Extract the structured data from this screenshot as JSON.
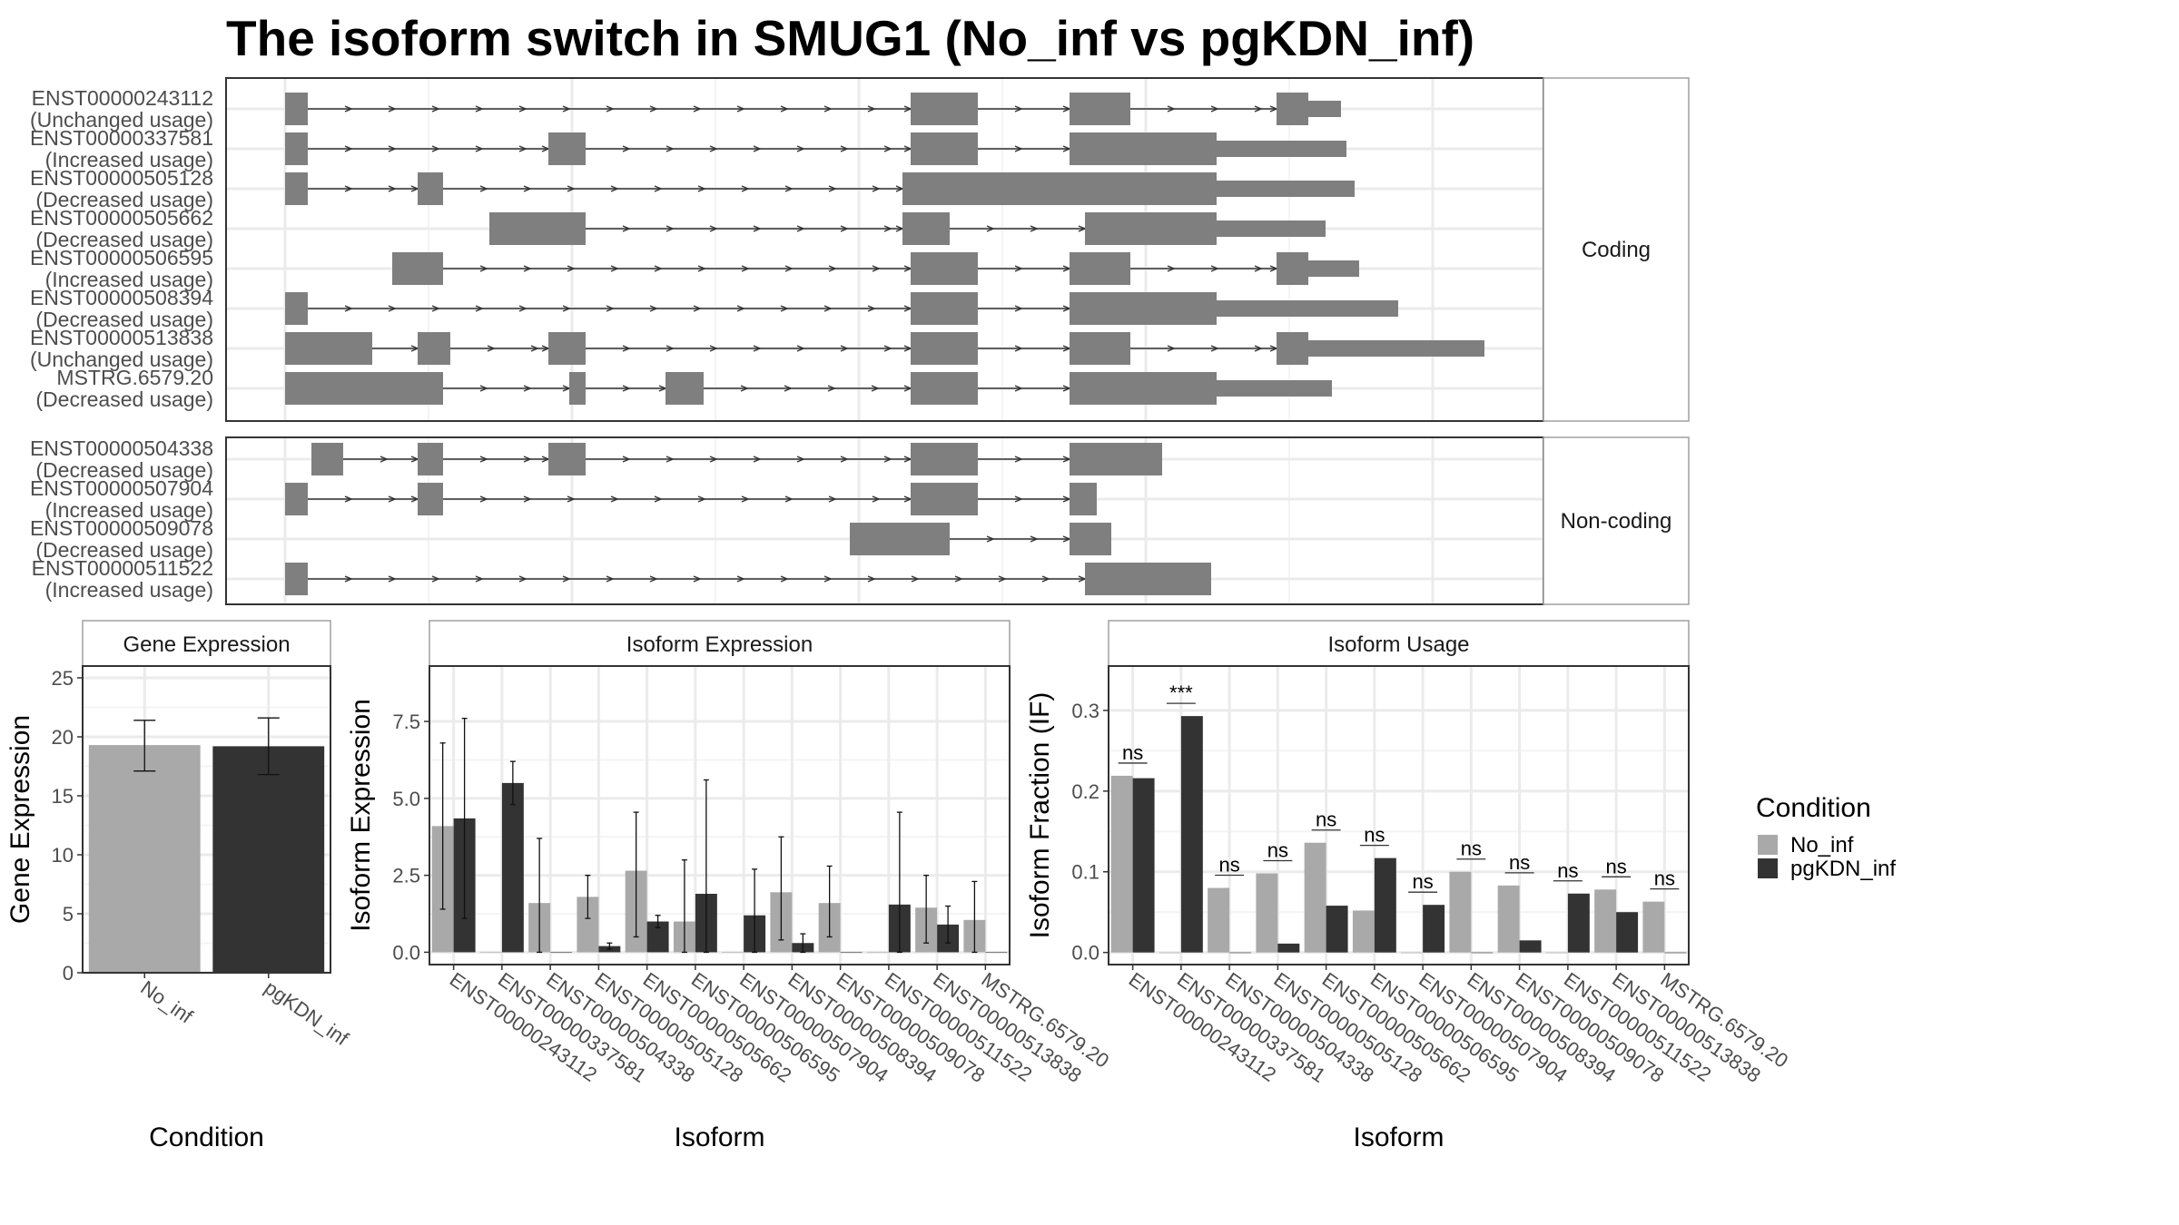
{
  "title": "The isoform switch in SMUG1 (No_inf vs pgKDN_inf)",
  "legend": {
    "title": "Condition",
    "items": [
      {
        "label": "No_inf",
        "color": "#a9a9a9"
      },
      {
        "label": "pgKDN_inf",
        "color": "#333333"
      }
    ]
  },
  "structure": {
    "exon_color": "#7f7f7f",
    "coding_panel": {
      "strip_label": "Coding",
      "rows": [
        {
          "id": "ENST00000243112",
          "usage": "(Unchanged usage)"
        },
        {
          "id": "ENST00000337581",
          "usage": "(Increased usage)"
        },
        {
          "id": "ENST00000505128",
          "usage": "(Decreased usage)"
        },
        {
          "id": "ENST00000505662",
          "usage": "(Decreased usage)"
        },
        {
          "id": "ENST00000506595",
          "usage": "(Increased usage)"
        },
        {
          "id": "ENST00000508394",
          "usage": "(Decreased usage)"
        },
        {
          "id": "ENST00000513838",
          "usage": "(Unchanged usage)"
        },
        {
          "id": "MSTRG.6579.20",
          "usage": "(Decreased usage)"
        }
      ]
    },
    "noncoding_panel": {
      "strip_label": "Non-coding",
      "rows": [
        {
          "id": "ENST00000504338",
          "usage": "(Decreased usage)"
        },
        {
          "id": "ENST00000507904",
          "usage": "(Increased usage)"
        },
        {
          "id": "ENST00000509078",
          "usage": "(Decreased usage)"
        },
        {
          "id": "ENST00000511522",
          "usage": "(Increased usage)"
        }
      ]
    }
  },
  "chart_data": [
    {
      "type": "bar",
      "strip": "Gene Expression",
      "xlabel": "Condition",
      "ylabel": "Gene Expression",
      "ylim": [
        0,
        26
      ],
      "yticks": [
        0,
        5,
        10,
        15,
        20,
        25
      ],
      "ytick_labels": [
        "0",
        "5",
        "10",
        "15",
        "20",
        "25"
      ],
      "categories": [
        "No_inf",
        "pgKDN_inf"
      ],
      "values": [
        19.3,
        19.2
      ],
      "err_low": [
        17.1,
        16.8
      ],
      "err_high": [
        21.4,
        21.6
      ]
    },
    {
      "type": "bar",
      "strip": "Isoform Expression",
      "xlabel": "Isoform",
      "ylabel": "Isoform Expression",
      "ylim": [
        -0.4,
        9.3
      ],
      "yticks": [
        0,
        2.5,
        5,
        7.5
      ],
      "ytick_labels": [
        "0.0",
        "2.5",
        "5.0",
        "7.5"
      ],
      "categories": [
        "ENST00000243112",
        "ENST00000337581",
        "ENST00000504338",
        "ENST00000505128",
        "ENST00000505662",
        "ENST00000506595",
        "ENST00000507904",
        "ENST00000508394",
        "ENST00000509078",
        "ENST00000511522",
        "ENST00000513838",
        "MSTRG.6579.20"
      ],
      "series": [
        {
          "name": "No_inf",
          "values": [
            4.1,
            0,
            1.6,
            1.8,
            2.65,
            1.0,
            0,
            1.95,
            1.6,
            0,
            1.45,
            1.05
          ],
          "err_low": [
            1.4,
            null,
            0,
            1.1,
            0.5,
            0,
            null,
            0.4,
            0.5,
            null,
            0.3,
            0
          ],
          "err_high": [
            6.8,
            null,
            3.7,
            2.5,
            4.55,
            3.0,
            null,
            3.75,
            2.8,
            null,
            2.5,
            2.3
          ]
        },
        {
          "name": "pgKDN_inf",
          "values": [
            4.35,
            5.5,
            0,
            0.2,
            1.0,
            1.9,
            1.2,
            0.3,
            0,
            1.55,
            0.9,
            0
          ],
          "err_low": [
            1.1,
            4.8,
            null,
            0.1,
            0.8,
            0,
            0,
            0,
            null,
            0,
            0.3,
            null
          ],
          "err_high": [
            7.6,
            6.2,
            null,
            0.3,
            1.2,
            5.6,
            2.7,
            0.6,
            null,
            4.55,
            1.5,
            null
          ]
        }
      ]
    },
    {
      "type": "bar",
      "strip": "Isoform Usage",
      "xlabel": "Isoform",
      "ylabel": "Isoform Fraction (IF)",
      "ylim": [
        -0.015,
        0.355
      ],
      "yticks": [
        0,
        0.1,
        0.2,
        0.3
      ],
      "ytick_labels": [
        "0.0",
        "0.1",
        "0.2",
        "0.3"
      ],
      "categories": [
        "ENST00000243112",
        "ENST00000337581",
        "ENST00000504338",
        "ENST00000505128",
        "ENST00000505662",
        "ENST00000506595",
        "ENST00000507904",
        "ENST00000508394",
        "ENST00000509078",
        "ENST00000511522",
        "ENST00000513838",
        "MSTRG.6579.20"
      ],
      "series": [
        {
          "name": "No_inf",
          "values": [
            0.219,
            0,
            0.08,
            0.098,
            0.136,
            0.052,
            0,
            0.1,
            0.083,
            0,
            0.078,
            0.063
          ]
        },
        {
          "name": "pgKDN_inf",
          "values": [
            0.216,
            0.293,
            0,
            0.011,
            0.058,
            0.117,
            0.059,
            0,
            0.015,
            0.073,
            0.05,
            0
          ]
        }
      ],
      "significance": [
        "ns",
        "***",
        "ns",
        "ns",
        "ns",
        "ns",
        "ns",
        "ns",
        "ns",
        "ns",
        "ns",
        "ns"
      ]
    }
  ]
}
